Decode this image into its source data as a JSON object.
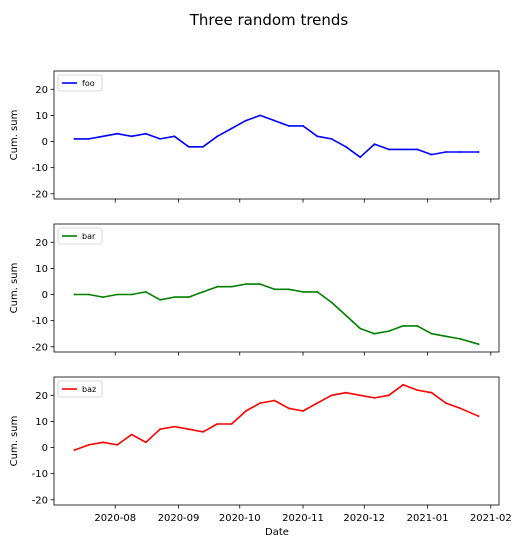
{
  "chart_data": {
    "type": "line",
    "title": "Three random trends",
    "xlabel": "Date",
    "x_start": "2020-07-12",
    "x_end": "2021-01-26",
    "xlim": [
      "2020-07-02",
      "2021-02-05"
    ],
    "xticks": [
      {
        "date": "2020-08-01",
        "label": "2020-08"
      },
      {
        "date": "2020-09-01",
        "label": "2020-09"
      },
      {
        "date": "2020-10-01",
        "label": "2020-10"
      },
      {
        "date": "2020-11-01",
        "label": "2020-11"
      },
      {
        "date": "2020-12-01",
        "label": "2020-12"
      },
      {
        "date": "2021-01-01",
        "label": "2021-01"
      },
      {
        "date": "2021-02-01",
        "label": "2021-02"
      }
    ],
    "ylim": [
      -22,
      27
    ],
    "yticks": [
      -20,
      -10,
      0,
      10,
      20
    ],
    "legend_position": "upper-left",
    "grid": false,
    "shared_x": true,
    "panels": [
      {
        "ylabel": "Cum. sum",
        "series": {
          "name": "foo",
          "color": "#0000ff",
          "x": [
            "2020-07-12",
            "2020-07-19",
            "2020-07-26",
            "2020-08-02",
            "2020-08-09",
            "2020-08-16",
            "2020-08-23",
            "2020-08-30",
            "2020-09-06",
            "2020-09-13",
            "2020-09-20",
            "2020-09-27",
            "2020-10-04",
            "2020-10-11",
            "2020-10-18",
            "2020-10-25",
            "2020-11-01",
            "2020-11-08",
            "2020-11-15",
            "2020-11-22",
            "2020-11-29",
            "2020-12-06",
            "2020-12-13",
            "2020-12-20",
            "2020-12-27",
            "2021-01-03",
            "2021-01-10",
            "2021-01-17",
            "2021-01-26"
          ],
          "y": [
            1,
            1,
            2,
            3,
            2,
            3,
            1,
            2,
            -2,
            -2,
            2,
            5,
            8,
            10,
            8,
            6,
            6,
            2,
            1,
            -2,
            -6,
            -1,
            -3,
            -3,
            -3,
            -5,
            -4,
            -4,
            -4
          ]
        }
      },
      {
        "ylabel": "Cum. sum",
        "series": {
          "name": "bar",
          "color": "#008000",
          "x": [
            "2020-07-12",
            "2020-07-19",
            "2020-07-26",
            "2020-08-02",
            "2020-08-09",
            "2020-08-16",
            "2020-08-23",
            "2020-08-30",
            "2020-09-06",
            "2020-09-13",
            "2020-09-20",
            "2020-09-27",
            "2020-10-04",
            "2020-10-11",
            "2020-10-18",
            "2020-10-25",
            "2020-11-01",
            "2020-11-08",
            "2020-11-15",
            "2020-11-22",
            "2020-11-29",
            "2020-12-06",
            "2020-12-13",
            "2020-12-20",
            "2020-12-27",
            "2021-01-03",
            "2021-01-10",
            "2021-01-17",
            "2021-01-26"
          ],
          "y": [
            0,
            0,
            -1,
            0,
            0,
            1,
            -2,
            -1,
            -1,
            1,
            3,
            3,
            4,
            4,
            2,
            2,
            1,
            1,
            -3,
            -8,
            -13,
            -15,
            -14,
            -12,
            -12,
            -15,
            -16,
            -17,
            -19
          ]
        }
      },
      {
        "ylabel": "Cum. sum",
        "series": {
          "name": "baz",
          "color": "#ff0000",
          "x": [
            "2020-07-12",
            "2020-07-19",
            "2020-07-26",
            "2020-08-02",
            "2020-08-09",
            "2020-08-16",
            "2020-08-23",
            "2020-08-30",
            "2020-09-06",
            "2020-09-13",
            "2020-09-20",
            "2020-09-27",
            "2020-10-04",
            "2020-10-11",
            "2020-10-18",
            "2020-10-25",
            "2020-11-01",
            "2020-11-08",
            "2020-11-15",
            "2020-11-22",
            "2020-11-29",
            "2020-12-06",
            "2020-12-13",
            "2020-12-20",
            "2020-12-27",
            "2021-01-03",
            "2021-01-10",
            "2021-01-17",
            "2021-01-26"
          ],
          "y": [
            -1,
            1,
            2,
            1,
            5,
            2,
            7,
            8,
            7,
            6,
            9,
            9,
            14,
            17,
            18,
            15,
            14,
            17,
            20,
            21,
            20,
            19,
            20,
            24,
            22,
            21,
            17,
            15,
            12
          ]
        }
      }
    ]
  }
}
